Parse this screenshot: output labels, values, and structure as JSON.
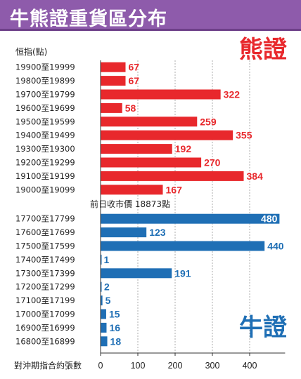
{
  "title": "牛熊證重貨區分布",
  "colors": {
    "bear": "#e8282c",
    "bull": "#1f6fb5",
    "title_bg": "#8e5bab",
    "grid": "#9a9a9a"
  },
  "chart_data": [
    {
      "type": "bar",
      "orientation": "horizontal",
      "name": "熊證",
      "ylabel": "恒指(點)",
      "categories": [
        "19900至19999",
        "19800至19899",
        "19700至19799",
        "19600至19699",
        "19500至19599",
        "19400至19499",
        "19300至19300",
        "19200至19299",
        "19100至19199",
        "19000至19099"
      ],
      "values": [
        67,
        67,
        322,
        58,
        259,
        355,
        192,
        270,
        384,
        167
      ]
    },
    {
      "type": "bar",
      "orientation": "horizontal",
      "name": "牛證",
      "categories": [
        "17700至17799",
        "17600至17699",
        "17500至17599",
        "17400至17499",
        "17300至17399",
        "17200至17299",
        "17100至17199",
        "17000至17099",
        "16900至16999",
        "16800至16899"
      ],
      "values": [
        480,
        123,
        440,
        1,
        191,
        2,
        5,
        15,
        16,
        18
      ]
    }
  ],
  "axis": {
    "xlabel": "對沖期指合約張數",
    "ticks": [
      0,
      100,
      200,
      300,
      400
    ],
    "xlim": [
      0,
      480
    ],
    "grid": true
  },
  "annotation": "前日收市價 18873點"
}
